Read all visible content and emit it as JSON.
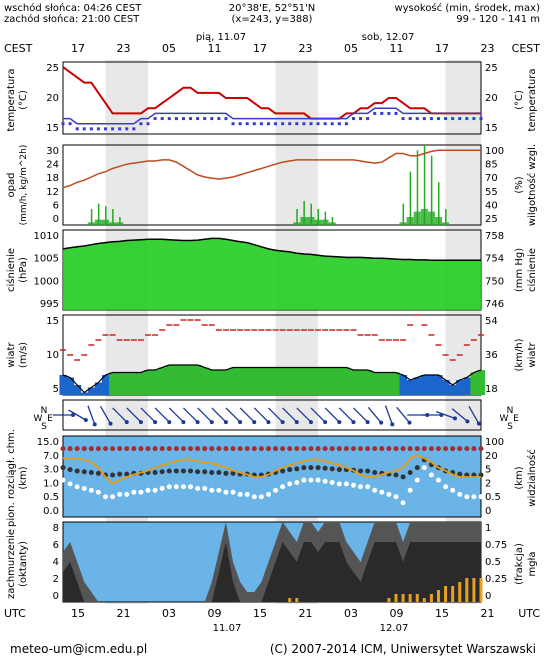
{
  "header": {
    "sunrise": "wschód słońca: 04:26 CEST",
    "sunset": "zachód słońca: 21:00 CEST",
    "coords": "20°38'E, 52°51'N",
    "grid": "(x=243, y=388)",
    "elevation_label": "wysokość (min, środek, max)",
    "elevation_values": "99 - 120 - 141 m"
  },
  "top_axis": {
    "left_tz": "CEST",
    "right_tz": "CEST",
    "day1": "pią, 11.07",
    "day2": "sob, 12.07",
    "hours": [
      "17",
      "23",
      "05",
      "11",
      "17",
      "23",
      "05",
      "11",
      "17",
      "23"
    ]
  },
  "bottom_axis": {
    "left_tz": "UTC",
    "right_tz": "UTC",
    "hours": [
      "15",
      "21",
      "03",
      "09",
      "15",
      "21",
      "03",
      "09",
      "15",
      "21"
    ],
    "day1": "11.07",
    "day2": "12.07"
  },
  "footer": {
    "email": "meteo-um@icm.edu.pl",
    "copyright": "(C) 2007-2014 ICM, Uniwersytet Warszawski"
  },
  "panels": {
    "temp": {
      "left_label": "temperatura",
      "left_unit": "(°C)",
      "right_label": "temperatura",
      "right_unit": "(°C)",
      "ticks": [
        "25",
        "20",
        "15"
      ]
    },
    "precip": {
      "left_label": "opad",
      "left_unit": "(mm/h, kg/m^2h)",
      "right_label": "wilgotność wzgl.",
      "right_unit": "(%)",
      "left_ticks": [
        "30",
        "24",
        "18",
        "12",
        "6",
        "0"
      ],
      "right_ticks": [
        "100",
        "85",
        "70",
        "55",
        "40",
        "25"
      ]
    },
    "pressure": {
      "left_label": "ciśnienie",
      "left_unit": "(hPa)",
      "right_label": "ciśnienie",
      "right_unit": "(mm Hg)",
      "left_ticks": [
        "1010",
        "1005",
        "1000",
        "995"
      ],
      "right_ticks": [
        "758",
        "754",
        "750",
        "746"
      ]
    },
    "wind": {
      "left_label": "wiatr",
      "left_unit": "(m/s)",
      "right_label": "wiatr",
      "right_unit": "(km/h)",
      "left_ticks": [
        "15",
        "10",
        "5"
      ],
      "right_ticks": [
        "54",
        "36",
        "18"
      ]
    },
    "dir": {
      "compass": [
        "N",
        "W",
        "E",
        "S"
      ]
    },
    "cloudbase": {
      "left_label": "pion. rozciągł. chm.",
      "left_unit": "(km)",
      "right_label": "widzialność",
      "right_unit": "(km)",
      "left_ticks": [
        "15.0",
        "7.0",
        "3.0",
        "1.0",
        "0.5",
        "0.0"
      ],
      "right_ticks": [
        "100",
        "20",
        "5",
        "2",
        "0.5",
        "0"
      ]
    },
    "clouds": {
      "left_label": "zachmurzenie",
      "left_unit": "(oktanty)",
      "right_label": "mgła",
      "right_unit": "(frakcja)",
      "left_ticks": [
        "8",
        "6",
        "4",
        "2",
        "0"
      ],
      "right_ticks": [
        "1",
        "0.75",
        "0.5",
        "0.25",
        "0"
      ]
    }
  },
  "chart_data": {
    "type": "line",
    "hours": 60,
    "temperature_c": [
      26,
      25,
      24,
      23,
      23,
      21,
      19,
      17,
      17,
      17,
      17,
      17,
      18,
      18,
      19,
      20,
      21,
      22,
      22,
      21,
      21,
      21,
      21,
      20,
      20,
      20,
      20,
      19,
      18,
      18,
      17,
      17,
      17,
      17,
      17,
      16,
      16,
      16,
      16,
      16,
      17,
      17,
      18,
      18,
      19,
      19,
      20,
      20,
      19,
      18,
      18,
      18,
      17,
      17,
      17,
      17,
      17,
      17,
      17,
      17
    ],
    "dewpoint_c": [
      15,
      15,
      14,
      14,
      14,
      14,
      14,
      14,
      14,
      14,
      14,
      15,
      15,
      16,
      16,
      16,
      16,
      16,
      16,
      16,
      16,
      16,
      16,
      16,
      15,
      15,
      15,
      15,
      15,
      15,
      15,
      15,
      15,
      15,
      15,
      15,
      15,
      15,
      15,
      15,
      15,
      16,
      16,
      16,
      17,
      17,
      17,
      17,
      16,
      16,
      16,
      16,
      16,
      16,
      16,
      16,
      16,
      16,
      16,
      16
    ],
    "relative_humidity_pct": [
      60,
      62,
      65,
      67,
      70,
      73,
      75,
      78,
      80,
      82,
      83,
      84,
      85,
      85,
      86,
      86,
      84,
      80,
      76,
      72,
      70,
      69,
      68,
      69,
      70,
      72,
      74,
      76,
      78,
      80,
      82,
      84,
      85,
      86,
      86,
      86,
      86,
      86,
      86,
      86,
      86,
      86,
      85,
      84,
      83,
      84,
      88,
      92,
      92,
      90,
      90,
      92,
      94,
      95,
      95,
      95,
      95,
      95,
      95,
      95
    ],
    "precip_max_mm_h": [
      0,
      0,
      0,
      0,
      6,
      8,
      7,
      6,
      3,
      0,
      0,
      0,
      0,
      0,
      0,
      0,
      0,
      0,
      0,
      0,
      0,
      0,
      0,
      0,
      0,
      0,
      0,
      0,
      0,
      0,
      0,
      0,
      0,
      6,
      9,
      8,
      6,
      5,
      3,
      0,
      0,
      0,
      0,
      0,
      0,
      0,
      0,
      0,
      8,
      20,
      28,
      30,
      26,
      16,
      6,
      0,
      0,
      0,
      0,
      0
    ],
    "precip_mean_mm_h": [
      0,
      0,
      0,
      0,
      1,
      2,
      2,
      1,
      1,
      0,
      0,
      0,
      0,
      0,
      0,
      0,
      0,
      0,
      0,
      0,
      0,
      0,
      0,
      0,
      0,
      0,
      0,
      0,
      0,
      0,
      0,
      0,
      0,
      1,
      3,
      3,
      2,
      2,
      1,
      0,
      0,
      0,
      0,
      0,
      0,
      0,
      0,
      0,
      1,
      3,
      5,
      6,
      5,
      3,
      1,
      0,
      0,
      0,
      0,
      0
    ],
    "pressure_hpa": [
      1007.5,
      1007.8,
      1008,
      1008.2,
      1008.5,
      1008.8,
      1009,
      1009.2,
      1009.3,
      1009.5,
      1009.6,
      1009.7,
      1009.8,
      1009.8,
      1009.8,
      1009.7,
      1009.6,
      1009.5,
      1009.5,
      1009.6,
      1009.8,
      1010,
      1010,
      1009.8,
      1009.5,
      1009.2,
      1009,
      1008.5,
      1008,
      1007.5,
      1007.2,
      1007,
      1006.8,
      1006.5,
      1006.3,
      1006.2,
      1006,
      1005.8,
      1005.7,
      1005.6,
      1005.5,
      1005.5,
      1005.5,
      1005.4,
      1005.3,
      1005.3,
      1005.2,
      1005.1,
      1005,
      1005,
      1004.9,
      1004.9,
      1004.8,
      1004.8,
      1004.8,
      1004.8,
      1004.8,
      1004.8,
      1004.8,
      1004.8
    ],
    "wind_mean_ms": [
      4,
      3.5,
      2,
      0.5,
      1.5,
      2.5,
      4,
      4.5,
      4.5,
      4.5,
      4.5,
      4.5,
      5,
      5,
      5.5,
      6,
      6,
      6,
      6,
      6,
      5.5,
      5,
      5,
      5,
      5.5,
      5.5,
      5.5,
      5.5,
      5.5,
      5.5,
      5.5,
      5.5,
      5.5,
      5.5,
      5.5,
      5.5,
      5.5,
      5.5,
      5.5,
      5.5,
      5.5,
      5,
      5,
      5,
      4.5,
      4.5,
      4.5,
      4.5,
      4,
      3,
      3.5,
      4,
      4,
      4,
      3,
      2,
      3,
      3.5,
      4.5,
      5
    ],
    "wind_gust_ms": [
      9,
      8,
      7,
      8,
      10,
      11,
      12,
      12,
      11,
      11,
      11,
      11,
      12,
      12,
      13,
      14,
      14,
      15,
      15,
      15,
      14,
      14,
      13,
      13,
      13,
      13,
      13,
      13,
      13,
      13,
      13,
      13,
      13,
      13,
      13,
      13,
      13,
      13,
      13,
      13,
      13,
      13,
      12,
      12,
      12,
      11,
      11,
      11,
      11,
      14,
      16,
      14,
      12,
      10,
      8,
      7,
      8,
      10,
      11,
      12
    ],
    "wind_dir_deg": [
      270,
      280,
      300,
      330,
      340,
      340,
      330,
      320,
      315,
      315,
      315,
      315,
      315,
      315,
      315,
      315,
      315,
      315,
      315,
      315,
      315,
      315,
      315,
      315,
      315,
      315,
      315,
      315,
      315,
      315,
      315,
      315,
      315,
      315,
      315,
      315,
      315,
      315,
      315,
      315,
      315,
      315,
      315,
      315,
      320,
      330,
      340,
      350,
      320,
      280,
      270,
      260,
      270,
      280,
      290,
      300,
      310,
      320,
      330,
      340
    ],
    "cloud_base_km": [
      1.5,
      1.2,
      1,
      0.9,
      0.8,
      0.7,
      0.5,
      0.5,
      0.6,
      0.6,
      0.7,
      0.7,
      0.8,
      0.8,
      0.9,
      1,
      1,
      1,
      1,
      0.9,
      0.9,
      0.8,
      0.8,
      0.7,
      0.7,
      0.6,
      0.6,
      0.5,
      0.5,
      0.6,
      0.8,
      1,
      1.2,
      1.3,
      1.5,
      1.5,
      1.5,
      1.4,
      1.3,
      1.2,
      1.2,
      1.1,
      1,
      1,
      0.8,
      0.7,
      0.6,
      0.5,
      0.3,
      0.8,
      1.5,
      3,
      2,
      1.5,
      1,
      0.8,
      0.6,
      0.5,
      0.5,
      0.5
    ],
    "visibility_km": [
      20,
      20,
      20,
      18,
      15,
      10,
      5,
      3,
      4,
      5,
      6,
      7,
      8,
      10,
      12,
      14,
      16,
      18,
      18,
      16,
      15,
      14,
      12,
      10,
      8,
      7,
      6,
      5,
      5,
      6,
      8,
      10,
      12,
      14,
      16,
      18,
      18,
      16,
      14,
      12,
      10,
      8,
      6,
      5,
      5,
      6,
      7,
      8,
      10,
      20,
      25,
      20,
      15,
      10,
      8,
      6,
      5,
      5,
      5,
      5
    ],
    "cloud_total_octa": [
      5,
      6,
      4,
      2,
      1,
      0,
      0,
      0,
      0,
      0,
      0,
      0,
      0,
      0,
      0,
      0,
      0,
      0,
      0,
      0,
      0,
      2,
      5,
      8,
      4,
      2,
      1,
      1,
      2,
      4,
      6,
      8,
      7,
      6,
      8,
      8,
      7,
      8,
      8,
      8,
      6,
      5,
      4,
      6,
      8,
      8,
      8,
      8,
      6,
      8,
      8,
      8,
      8,
      8,
      8,
      8,
      8,
      8,
      8,
      8
    ],
    "fog_fraction": [
      0,
      0,
      0,
      0,
      0,
      0,
      0,
      0,
      0,
      0,
      0,
      0,
      0,
      0,
      0,
      0,
      0,
      0,
      0,
      0,
      0,
      0,
      0,
      0,
      0,
      0,
      0,
      0,
      0,
      0,
      0,
      0,
      0.05,
      0.05,
      0,
      0,
      0,
      0,
      0,
      0,
      0,
      0,
      0,
      0,
      0,
      0,
      0.05,
      0.1,
      0.1,
      0.1,
      0.1,
      0.05,
      0.1,
      0.15,
      0.2,
      0.2,
      0.25,
      0.3,
      0.3,
      0.3
    ]
  },
  "colors": {
    "temperature": "#cc0000",
    "dewpoint": "#3a3ad0",
    "humidity": "#c04a20",
    "precip": "#22aa22",
    "pressure_fill": "#22cc22",
    "wind_low": "#1a66cc",
    "wind_high": "#33bb33",
    "gust": "#cc2222",
    "cloud_bg": "#6ab4e8",
    "night_band": "#d8d8d8",
    "vis_line": "#e89a10",
    "fog_bars": "#e8a020"
  }
}
